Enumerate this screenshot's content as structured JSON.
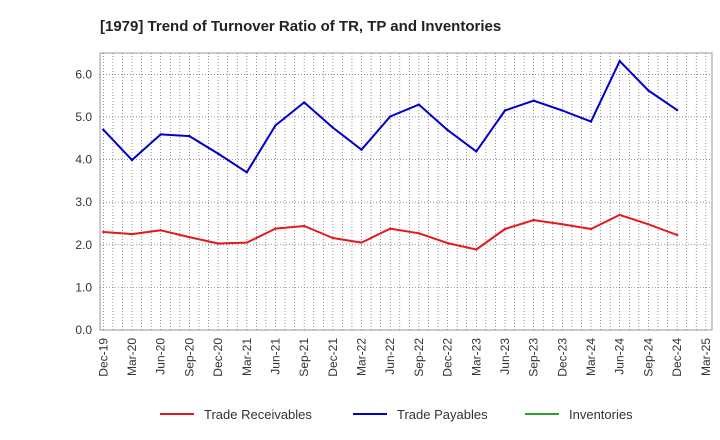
{
  "chart_data": {
    "type": "line",
    "title": "[1979]  Trend of Turnover Ratio of TR, TP and Inventories",
    "xlabel": "",
    "ylabel": "",
    "ylim": [
      0,
      6.5
    ],
    "yticks": [
      "0.0",
      "1.0",
      "2.0",
      "3.0",
      "4.0",
      "5.0",
      "6.0"
    ],
    "x_tick_labels": [
      "Dec-19",
      "Mar-20",
      "Jun-20",
      "Sep-20",
      "Dec-20",
      "Mar-21",
      "Jun-21",
      "Sep-21",
      "Dec-21",
      "Mar-22",
      "Jun-22",
      "Sep-22",
      "Dec-22",
      "Mar-23",
      "Jun-23",
      "Sep-23",
      "Dec-23",
      "Mar-24",
      "Jun-24",
      "Sep-24",
      "Dec-24",
      "Mar-25"
    ],
    "grid": true,
    "legend_position": "bottom",
    "series": [
      {
        "name": "Trade Receivables",
        "color": "#e31a1c",
        "points": [
          [
            "Dec-19",
            2.3
          ],
          [
            "Mar-20",
            2.25
          ],
          [
            "Jun-20",
            2.34
          ],
          [
            "Sep-20",
            2.18
          ],
          [
            "Dec-20",
            2.03
          ],
          [
            "Mar-21",
            2.05
          ],
          [
            "Jun-21",
            2.38
          ],
          [
            "Sep-21",
            2.44
          ],
          [
            "Dec-21",
            2.16
          ],
          [
            "Mar-22",
            2.05
          ],
          [
            "Jun-22",
            2.38
          ],
          [
            "Sep-22",
            2.27
          ],
          [
            "Dec-22",
            2.04
          ],
          [
            "Mar-23",
            1.89
          ],
          [
            "Jun-23",
            2.37
          ],
          [
            "Sep-23",
            2.58
          ],
          [
            "Dec-23",
            2.48
          ],
          [
            "Mar-24",
            2.37
          ],
          [
            "Jun-24",
            2.7
          ],
          [
            "Sep-24",
            2.48
          ],
          [
            "Dec-24",
            2.23
          ]
        ]
      },
      {
        "name": "Trade Payables",
        "color": "#0000cc",
        "points": [
          [
            "Dec-19",
            4.7
          ],
          [
            "Mar-20",
            3.99
          ],
          [
            "Jun-20",
            4.59
          ],
          [
            "Sep-20",
            4.55
          ],
          [
            "Dec-20",
            4.14
          ],
          [
            "Mar-21",
            3.7
          ],
          [
            "Jun-21",
            4.8
          ],
          [
            "Sep-21",
            5.34
          ],
          [
            "Dec-21",
            4.75
          ],
          [
            "Mar-22",
            4.23
          ],
          [
            "Jun-22",
            5.01
          ],
          [
            "Sep-22",
            5.29
          ],
          [
            "Dec-22",
            4.69
          ],
          [
            "Mar-23",
            4.19
          ],
          [
            "Jun-23",
            5.15
          ],
          [
            "Sep-23",
            5.38
          ],
          [
            "Dec-23",
            5.15
          ],
          [
            "Mar-24",
            4.89
          ],
          [
            "Jun-24",
            6.31
          ],
          [
            "Sep-24",
            5.62
          ],
          [
            "Dec-24",
            5.16
          ]
        ]
      },
      {
        "name": "Inventories",
        "color": "#2ca02c",
        "points": []
      }
    ]
  }
}
